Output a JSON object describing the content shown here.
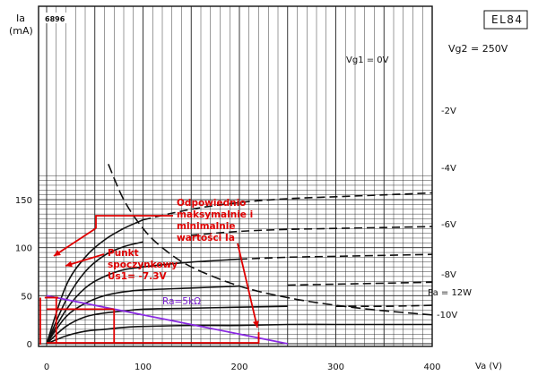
{
  "chart_data": {
    "type": "line",
    "sheet_id": "6896",
    "tube": "EL84",
    "y_axis_label": [
      "Ia",
      "(mA)"
    ],
    "x_axis_label": "Va (V)",
    "vg2_label": "Vg2 = 250V",
    "xlim": [
      0,
      400
    ],
    "ylim": [
      0,
      170
    ],
    "x_ticks": [
      0,
      100,
      200,
      300,
      400
    ],
    "y_ticks": [
      0,
      50,
      100,
      150
    ],
    "grid": true,
    "series": [
      {
        "name": "Vg1 = 0V",
        "values": [
          [
            0,
            0
          ],
          [
            20,
            60
          ],
          [
            40,
            90
          ],
          [
            60,
            108
          ],
          [
            80,
            120
          ],
          [
            100,
            129
          ],
          [
            150,
            140
          ],
          [
            200,
            147
          ],
          [
            250,
            151
          ],
          [
            300,
            153
          ],
          [
            350,
            155
          ],
          [
            400,
            157
          ]
        ]
      },
      {
        "name": "-2V",
        "values": [
          [
            0,
            0
          ],
          [
            20,
            45
          ],
          [
            40,
            75
          ],
          [
            60,
            92
          ],
          [
            80,
            101
          ],
          [
            100,
            106
          ],
          [
            150,
            113
          ],
          [
            200,
            117
          ],
          [
            250,
            119
          ],
          [
            300,
            120
          ],
          [
            350,
            121
          ],
          [
            400,
            122
          ]
        ]
      },
      {
        "name": "-4V",
        "values": [
          [
            0,
            0
          ],
          [
            20,
            35
          ],
          [
            40,
            58
          ],
          [
            60,
            70
          ],
          [
            80,
            77
          ],
          [
            100,
            80
          ],
          [
            150,
            85
          ],
          [
            200,
            88
          ],
          [
            250,
            90
          ],
          [
            300,
            91
          ],
          [
            350,
            92
          ],
          [
            400,
            93
          ]
        ]
      },
      {
        "name": "-6V",
        "values": [
          [
            0,
            0
          ],
          [
            20,
            28
          ],
          [
            40,
            42
          ],
          [
            60,
            50
          ],
          [
            80,
            54
          ],
          [
            100,
            56
          ],
          [
            150,
            58
          ],
          [
            200,
            60
          ],
          [
            250,
            61
          ],
          [
            300,
            62
          ],
          [
            350,
            63
          ],
          [
            400,
            64
          ]
        ]
      },
      {
        "name": "-8V",
        "values": [
          [
            0,
            0
          ],
          [
            20,
            18
          ],
          [
            40,
            28
          ],
          [
            60,
            32
          ],
          [
            80,
            34
          ],
          [
            100,
            36
          ],
          [
            150,
            37
          ],
          [
            200,
            38
          ],
          [
            250,
            39
          ],
          [
            300,
            39
          ],
          [
            350,
            39
          ],
          [
            400,
            40
          ]
        ]
      },
      {
        "name": "-10V",
        "values": [
          [
            0,
            0
          ],
          [
            20,
            8
          ],
          [
            40,
            13
          ],
          [
            60,
            15
          ],
          [
            80,
            17
          ],
          [
            100,
            18
          ],
          [
            150,
            19
          ],
          [
            200,
            19
          ],
          [
            250,
            20
          ],
          [
            300,
            20
          ],
          [
            350,
            20
          ],
          [
            400,
            20
          ]
        ]
      }
    ],
    "power_curve": {
      "name": "Pa = 12W",
      "values": [
        [
          64,
          187
        ],
        [
          80,
          150
        ],
        [
          100,
          120
        ],
        [
          120,
          100
        ],
        [
          150,
          80
        ],
        [
          200,
          60
        ],
        [
          250,
          48
        ],
        [
          300,
          40
        ],
        [
          350,
          34.3
        ],
        [
          400,
          30
        ]
      ]
    },
    "load_line": {
      "name": "Ra=5kΩ",
      "values": [
        [
          0,
          50
        ],
        [
          250,
          0
        ]
      ]
    },
    "operating_point": {
      "va": 10,
      "ia": 48
    },
    "annotations": {
      "note1": [
        "Odpowiednio",
        "maksymalnie i",
        "minimalnie",
        "wartości Ia"
      ],
      "note2": [
        "Punkt",
        "spoczynkowy",
        "Us1= -7.3V"
      ]
    }
  }
}
